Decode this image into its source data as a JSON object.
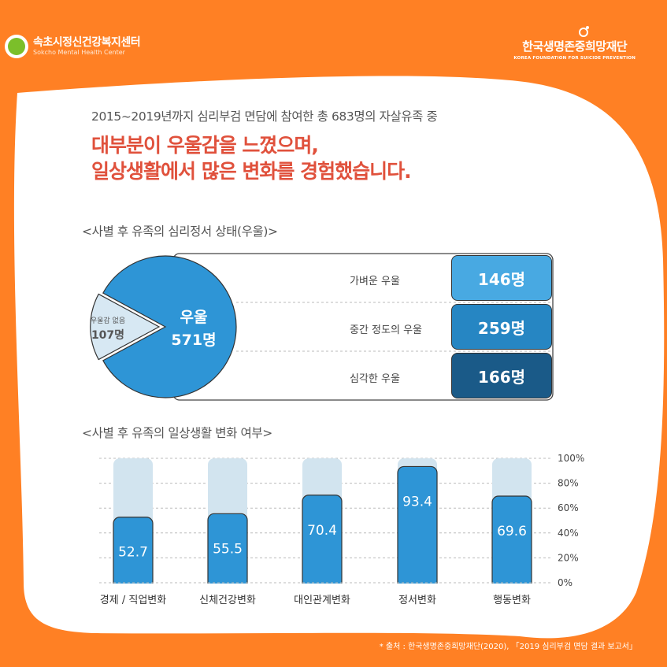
{
  "header": {
    "org_left": "속초시정신건강복지센터",
    "org_left_en": "Sokcho Mental Health Center",
    "org_right": "한국생명존중희망재단",
    "org_right_en": "KOREA FOUNDATION FOR SUICIDE PREVENTION"
  },
  "intro": "2015~2019년까지 심리부검 면담에 참여한 총 683명의 자살유족 중",
  "headline": {
    "line1": "대부분이 우울감을 느꼈으며,",
    "line2": "일상생활에서 많은 변화를 경험했습니다."
  },
  "section1_title": "<사별 후 유족의 심리정서 상태(우울)>",
  "section2_title": "<사별 후 유족의 일상생활 변화 여부>",
  "source": "* 출처 : 한국생명존중희망재단(2020), 「2019 심리부검 면담 결과 보고서」",
  "colors": {
    "background": "#ff8024",
    "headline": "#e0513c",
    "pie_main": "#2e95d6",
    "pie_small": "#d7e8f3",
    "mild": "#48a9e2",
    "moderate": "#2686c3",
    "severe": "#1a5a88",
    "bar": "#2e95d6",
    "bar_track": "#d2e4ef"
  },
  "chart_data": [
    {
      "type": "pie",
      "title": "<사별 후 유족의 심리정서 상태(우울)>",
      "slices": [
        {
          "name": "우울",
          "label": "571명",
          "value": 571
        },
        {
          "name": "우울감 없음",
          "label": "107명",
          "value": 107
        }
      ],
      "breakdown": [
        {
          "name": "가벼운 우울",
          "label": "146명",
          "value": 146
        },
        {
          "name": "중간 정도의 우울",
          "label": "259명",
          "value": 259
        },
        {
          "name": "심각한 우울",
          "label": "166명",
          "value": 166
        }
      ]
    },
    {
      "type": "bar",
      "title": "<사별 후 유족의 일상생활 변화 여부>",
      "categories": [
        "경제 / 직업변화",
        "신체건강변화",
        "대인관계변화",
        "정서변화",
        "행동변화"
      ],
      "values": [
        52.7,
        55.5,
        70.4,
        93.4,
        69.6
      ],
      "value_labels": [
        "52.7",
        "55.5",
        "70.4",
        "93.4",
        "69.6"
      ],
      "ylim": [
        0,
        100
      ],
      "yticks": [
        "0%",
        "20%",
        "40%",
        "60%",
        "80%",
        "100%"
      ],
      "grid": true
    }
  ]
}
